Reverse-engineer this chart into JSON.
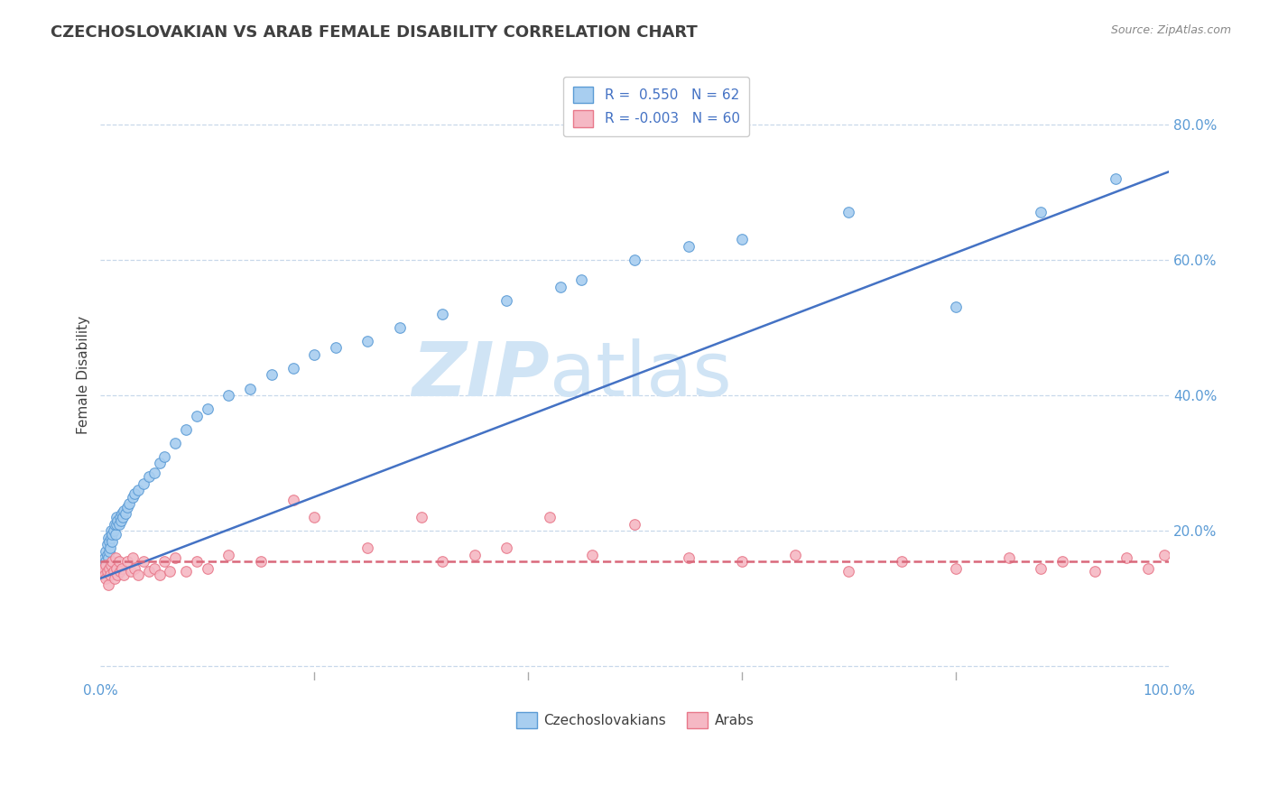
{
  "title": "CZECHOSLOVAKIAN VS ARAB FEMALE DISABILITY CORRELATION CHART",
  "source": "Source: ZipAtlas.com",
  "ylabel": "Female Disability",
  "xlim": [
    0,
    1.0
  ],
  "ylim": [
    -0.02,
    0.88
  ],
  "yticks": [
    0.0,
    0.2,
    0.4,
    0.6,
    0.8
  ],
  "xticks": [
    0.0,
    0.2,
    0.4,
    0.6,
    0.8,
    1.0
  ],
  "czech_color": "#a8cef0",
  "arab_color": "#f5b8c4",
  "czech_edge_color": "#5b9bd5",
  "arab_edge_color": "#e8788a",
  "czech_line_color": "#4472c4",
  "arab_line_color": "#d9687a",
  "watermark_zip": "ZIP",
  "watermark_atlas": "atlas",
  "watermark_color": "#d0e4f5",
  "grid_color": "#c8d8ea",
  "background_color": "#ffffff",
  "title_color": "#404040",
  "source_color": "#888888",
  "tick_color": "#5b9bd5",
  "czech_trendline_x": [
    0.0,
    1.0
  ],
  "czech_trendline_y": [
    0.13,
    0.73
  ],
  "arab_trendline_x": [
    0.0,
    1.0
  ],
  "arab_trendline_y": [
    0.155,
    0.155
  ],
  "czech_scatter_x": [
    0.002,
    0.003,
    0.004,
    0.005,
    0.005,
    0.006,
    0.006,
    0.007,
    0.007,
    0.008,
    0.008,
    0.009,
    0.01,
    0.01,
    0.011,
    0.011,
    0.012,
    0.013,
    0.014,
    0.015,
    0.015,
    0.016,
    0.017,
    0.018,
    0.019,
    0.02,
    0.021,
    0.022,
    0.023,
    0.025,
    0.027,
    0.03,
    0.032,
    0.035,
    0.04,
    0.045,
    0.05,
    0.055,
    0.06,
    0.07,
    0.08,
    0.09,
    0.1,
    0.12,
    0.14,
    0.16,
    0.18,
    0.2,
    0.22,
    0.25,
    0.28,
    0.32,
    0.38,
    0.43,
    0.45,
    0.5,
    0.55,
    0.6,
    0.7,
    0.8,
    0.88,
    0.95
  ],
  "czech_scatter_y": [
    0.14,
    0.15,
    0.16,
    0.155,
    0.17,
    0.165,
    0.18,
    0.16,
    0.19,
    0.17,
    0.185,
    0.175,
    0.19,
    0.2,
    0.185,
    0.195,
    0.2,
    0.21,
    0.195,
    0.21,
    0.22,
    0.215,
    0.21,
    0.22,
    0.215,
    0.225,
    0.22,
    0.23,
    0.225,
    0.235,
    0.24,
    0.25,
    0.255,
    0.26,
    0.27,
    0.28,
    0.285,
    0.3,
    0.31,
    0.33,
    0.35,
    0.37,
    0.38,
    0.4,
    0.41,
    0.43,
    0.44,
    0.46,
    0.47,
    0.48,
    0.5,
    0.52,
    0.54,
    0.56,
    0.57,
    0.6,
    0.62,
    0.63,
    0.67,
    0.53,
    0.67,
    0.72
  ],
  "arab_scatter_x": [
    0.002,
    0.003,
    0.004,
    0.005,
    0.005,
    0.006,
    0.007,
    0.008,
    0.009,
    0.01,
    0.011,
    0.012,
    0.013,
    0.014,
    0.015,
    0.016,
    0.017,
    0.018,
    0.02,
    0.022,
    0.025,
    0.028,
    0.03,
    0.032,
    0.035,
    0.04,
    0.045,
    0.05,
    0.055,
    0.06,
    0.065,
    0.07,
    0.08,
    0.09,
    0.1,
    0.12,
    0.15,
    0.18,
    0.2,
    0.25,
    0.3,
    0.32,
    0.35,
    0.38,
    0.42,
    0.46,
    0.5,
    0.55,
    0.6,
    0.65,
    0.7,
    0.75,
    0.8,
    0.85,
    0.88,
    0.9,
    0.93,
    0.96,
    0.98,
    0.995
  ],
  "arab_scatter_y": [
    0.14,
    0.145,
    0.135,
    0.13,
    0.15,
    0.14,
    0.12,
    0.145,
    0.135,
    0.15,
    0.155,
    0.14,
    0.13,
    0.16,
    0.145,
    0.135,
    0.155,
    0.14,
    0.145,
    0.135,
    0.155,
    0.14,
    0.16,
    0.145,
    0.135,
    0.155,
    0.14,
    0.145,
    0.135,
    0.155,
    0.14,
    0.16,
    0.14,
    0.155,
    0.145,
    0.165,
    0.155,
    0.245,
    0.22,
    0.175,
    0.22,
    0.155,
    0.165,
    0.175,
    0.22,
    0.165,
    0.21,
    0.16,
    0.155,
    0.165,
    0.14,
    0.155,
    0.145,
    0.16,
    0.145,
    0.155,
    0.14,
    0.16,
    0.145,
    0.165
  ]
}
